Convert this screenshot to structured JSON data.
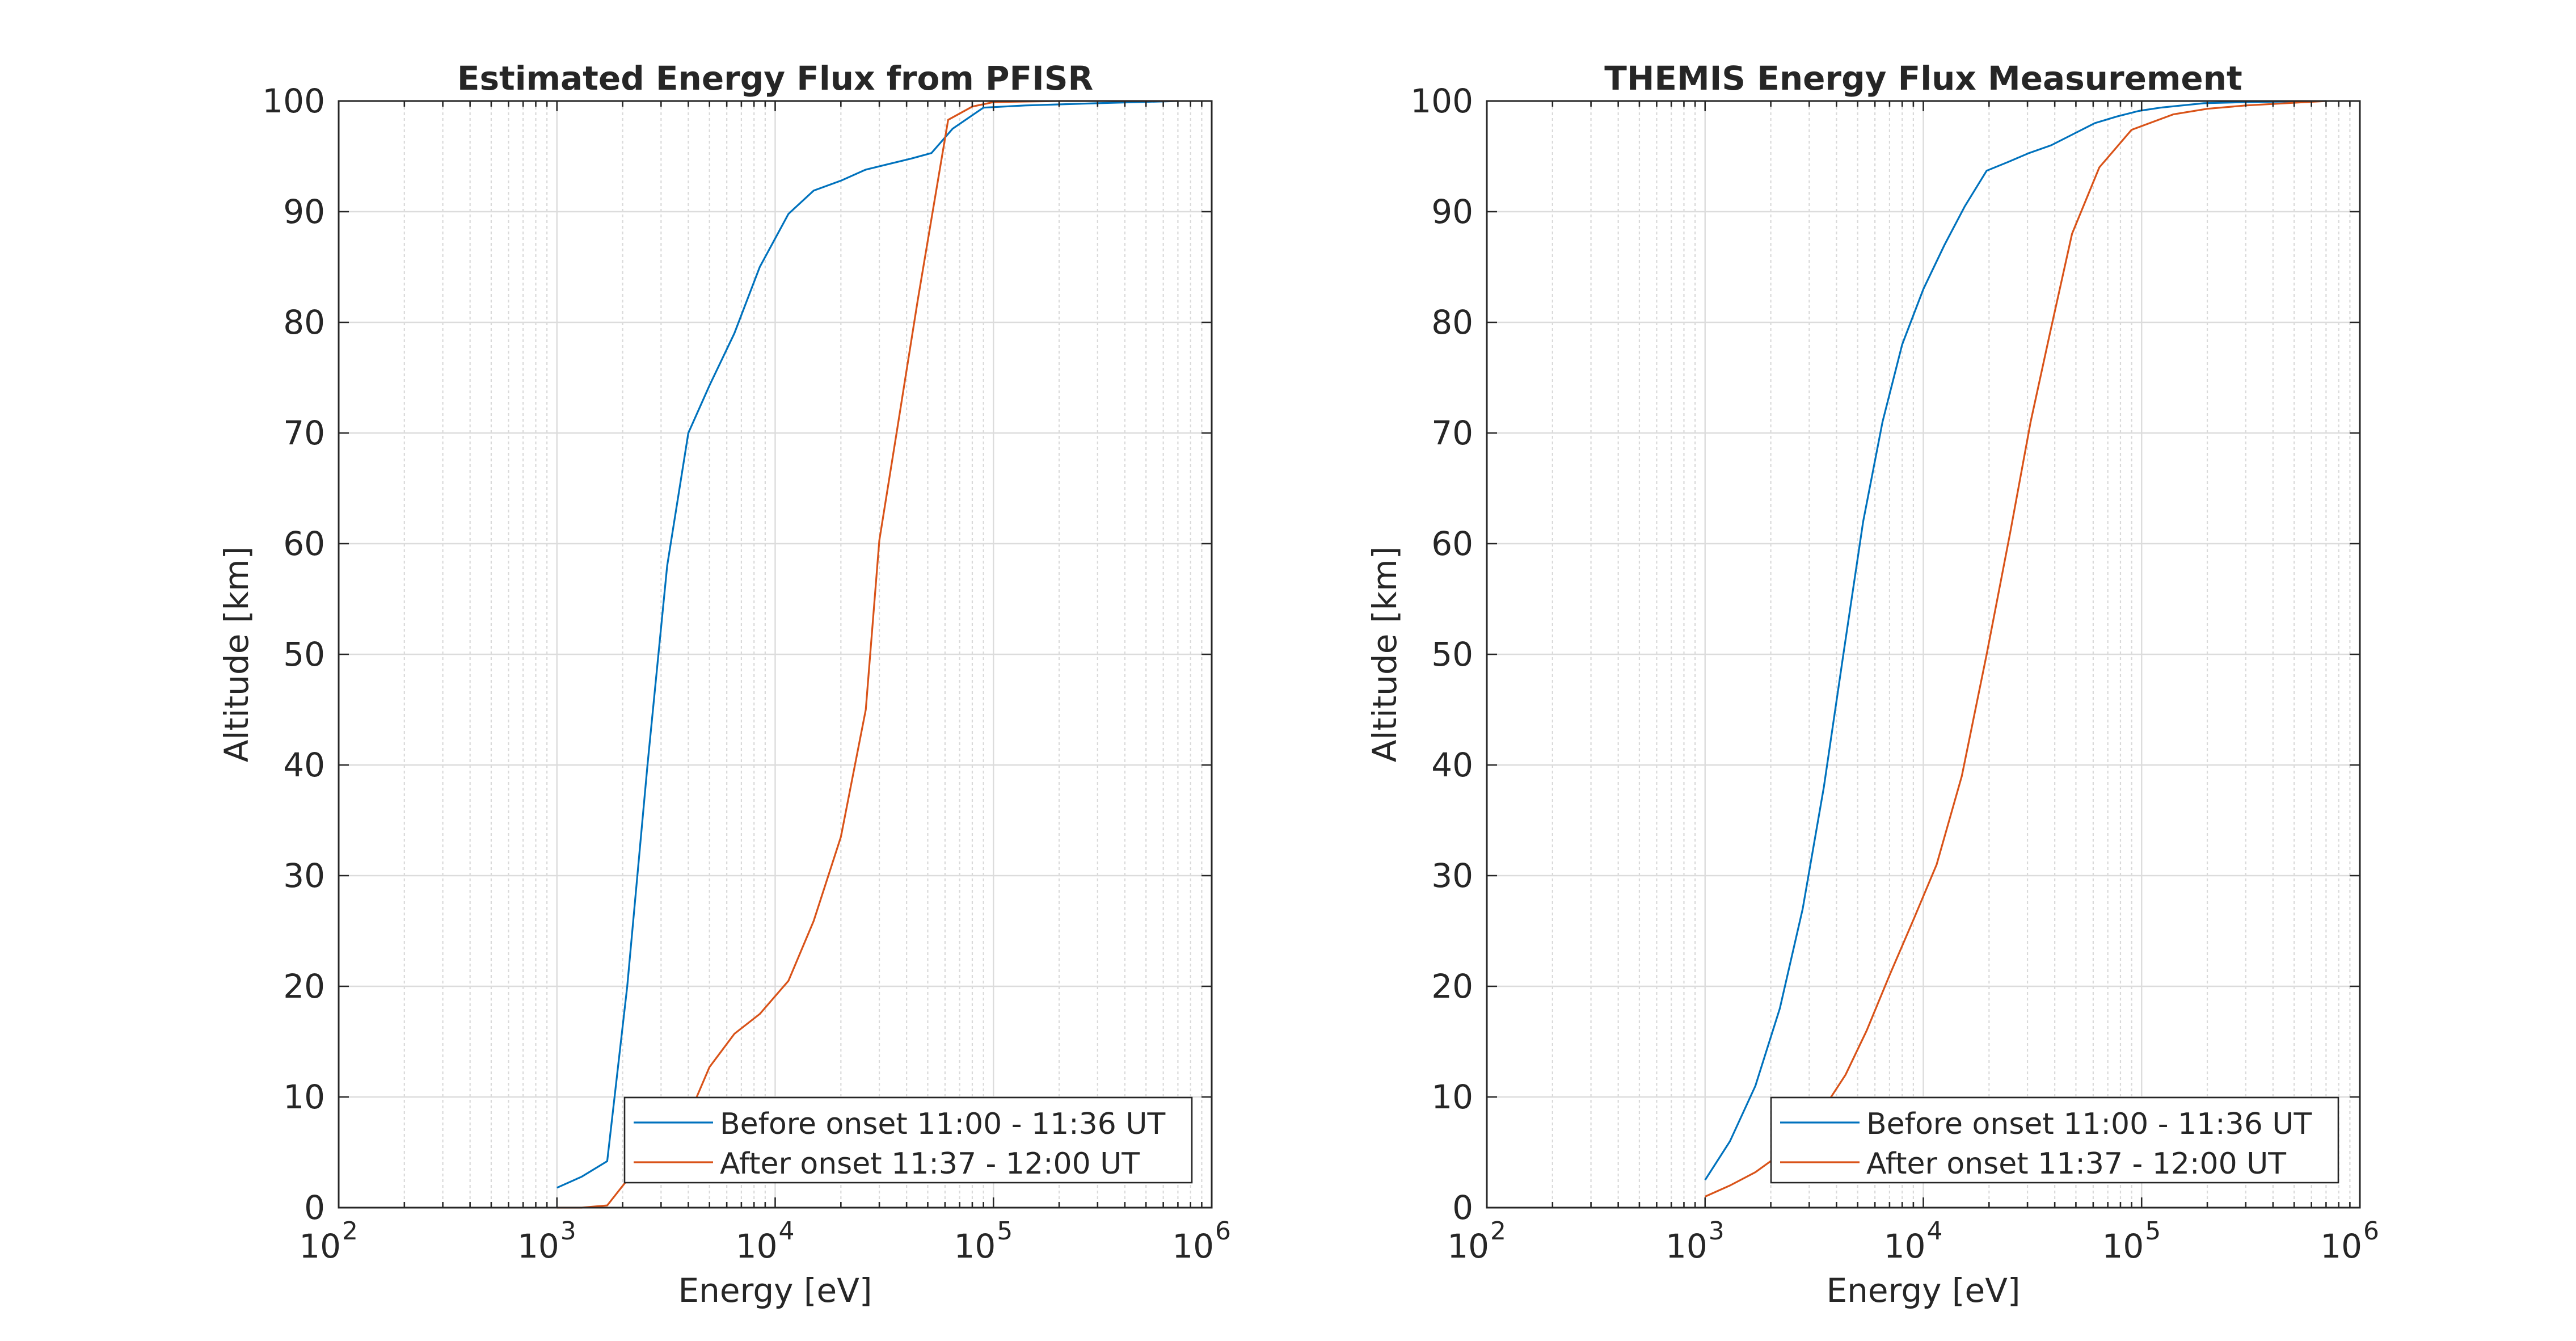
{
  "chart_data": [
    {
      "type": "line",
      "title": "Estimated Energy Flux from PFISR",
      "xlabel": "Energy [eV]",
      "ylabel": "Altitude [km]",
      "x_scale": "log",
      "xlim": [
        100,
        1000000
      ],
      "ylim": [
        0,
        100
      ],
      "x_ticks": [
        {
          "base": "10",
          "exp": "2"
        },
        {
          "base": "10",
          "exp": "3"
        },
        {
          "base": "10",
          "exp": "4"
        },
        {
          "base": "10",
          "exp": "5"
        },
        {
          "base": "10",
          "exp": "6"
        }
      ],
      "y_ticks": [
        "0",
        "10",
        "20",
        "30",
        "40",
        "50",
        "60",
        "70",
        "80",
        "90",
        "100"
      ],
      "grid": true,
      "minor_grid": true,
      "legend_position": "bottom-right",
      "series": [
        {
          "name": "Before onset 11:00 - 11:36 UT",
          "color": "#0072BD",
          "x": [
            1000,
            1300,
            1700,
            2100,
            2600,
            3200,
            4000,
            5000,
            6500,
            8500,
            11500,
            15000,
            20000,
            26000,
            33000,
            42000,
            52000,
            65000,
            90000,
            140000,
            300000,
            700000
          ],
          "y": [
            1.8,
            2.8,
            4.2,
            20,
            40,
            58,
            70,
            74.3,
            79,
            85,
            89.8,
            91.9,
            92.8,
            93.8,
            94.3,
            94.8,
            95.3,
            97.5,
            99.4,
            99.6,
            99.8,
            100
          ]
        },
        {
          "name": "After onset 11:37 - 12:00 UT",
          "color": "#D95319",
          "x": [
            1000,
            1300,
            1700,
            2200,
            2800,
            3500,
            4200,
            5000,
            6500,
            8500,
            11500,
            15000,
            20000,
            26000,
            30000,
            36000,
            45000,
            62000,
            80000,
            100000,
            200000,
            700000
          ],
          "y": [
            0,
            0,
            0.2,
            3,
            5.5,
            8,
            9.2,
            12.7,
            15.7,
            17.5,
            20.5,
            25.9,
            33.5,
            45,
            60.3,
            70,
            82,
            98.3,
            99.5,
            99.9,
            100,
            100
          ]
        }
      ]
    },
    {
      "type": "line",
      "title": "THEMIS Energy Flux Measurement",
      "xlabel": "Energy [eV]",
      "ylabel": "Altitude [km]",
      "x_scale": "log",
      "xlim": [
        100,
        1000000
      ],
      "ylim": [
        0,
        100
      ],
      "x_ticks": [
        {
          "base": "10",
          "exp": "2"
        },
        {
          "base": "10",
          "exp": "3"
        },
        {
          "base": "10",
          "exp": "4"
        },
        {
          "base": "10",
          "exp": "5"
        },
        {
          "base": "10",
          "exp": "6"
        }
      ],
      "y_ticks": [
        "0",
        "10",
        "20",
        "30",
        "40",
        "50",
        "60",
        "70",
        "80",
        "90",
        "100"
      ],
      "grid": true,
      "minor_grid": true,
      "legend_position": "bottom-right",
      "series": [
        {
          "name": "Before onset 11:00 - 11:36 UT",
          "color": "#0072BD",
          "x": [
            1000,
            1300,
            1700,
            2200,
            2800,
            3500,
            4300,
            5300,
            6500,
            8000,
            10000,
            12500,
            15500,
            19500,
            24500,
            30500,
            38500,
            48500,
            61000,
            77000,
            97000,
            122000,
            153000,
            193000,
            300000,
            700000
          ],
          "y": [
            2.5,
            6,
            11,
            18,
            27,
            38,
            50,
            62,
            71,
            78,
            83,
            87,
            90.5,
            93.7,
            94.5,
            95.3,
            96,
            97,
            98,
            98.6,
            99.1,
            99.4,
            99.6,
            99.8,
            99.9,
            100
          ],
          "note_skip": []
        },
        {
          "name": "After onset 11:37 - 12:00 UT",
          "color": "#D95319",
          "x": [
            1000,
            1300,
            1700,
            2200,
            2800,
            3500,
            4400,
            5500,
            7000,
            9000,
            11500,
            15000,
            19500,
            25000,
            31000,
            38000,
            48000,
            64000,
            90000,
            140000,
            200000,
            300000,
            700000
          ],
          "y": [
            1,
            2,
            3.2,
            4.8,
            6.8,
            9,
            12,
            16,
            21,
            26,
            31,
            39,
            50,
            61,
            71,
            79,
            88,
            94,
            97.4,
            98.8,
            99.3,
            99.6,
            100
          ]
        }
      ]
    }
  ]
}
